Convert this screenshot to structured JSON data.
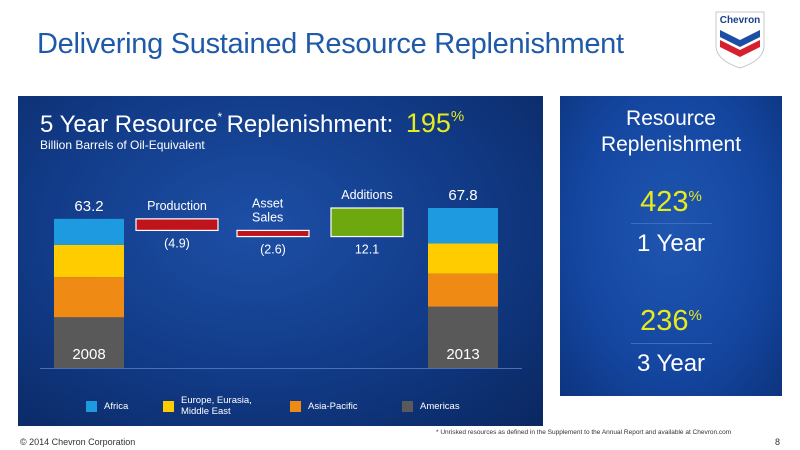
{
  "slide": {
    "title": "Delivering Sustained Resource Replenishment",
    "copyright": "© 2014 Chevron Corporation",
    "page_number": "8",
    "footnote": "* Unrisked resources as defined in the Supplement to the Annual Report and available at Chevron.com",
    "logo_text": "Chevron"
  },
  "chart_data": {
    "type": "waterfall",
    "title_prefix": "5 Year Resource",
    "title_asterisk": "*",
    "title_suffix": "Replenishment:",
    "title_value": "195",
    "title_value_unit": "%",
    "subtitle": "Billion Barrels of Oil-Equivalent",
    "stacked_bars": [
      {
        "category": "2008",
        "total": 63.2,
        "total_label": "63.2",
        "segments": [
          {
            "region": "Americas",
            "value": 21.5
          },
          {
            "region": "Asia-Pacific",
            "value": 17.0
          },
          {
            "region": "Europe, Eurasia, Middle East",
            "value": 13.7
          },
          {
            "region": "Africa",
            "value": 11.0
          }
        ]
      },
      {
        "category": "2013",
        "total": 67.8,
        "total_label": "67.8",
        "segments": [
          {
            "region": "Americas",
            "value": 26.0
          },
          {
            "region": "Asia-Pacific",
            "value": 14.0
          },
          {
            "region": "Europe, Eurasia, Middle East",
            "value": 12.8
          },
          {
            "region": "Africa",
            "value": 15.0
          }
        ]
      }
    ],
    "changes": [
      {
        "label": "Production",
        "value": -4.9,
        "value_label": "(4.9)",
        "color": "#c0141c"
      },
      {
        "label": "Asset\nSales",
        "value": -2.6,
        "value_label": "(2.6)",
        "color": "#c0141c"
      },
      {
        "label": "Additions",
        "value": 12.1,
        "value_label": "12.1",
        "color": "#6ea80f"
      }
    ],
    "legend": [
      {
        "label": "Africa",
        "color": "#1e9be0"
      },
      {
        "label": "Europe, Eurasia,\nMiddle East",
        "color": "#ffcc00"
      },
      {
        "label": "Asia-Pacific",
        "color": "#ef8a14"
      },
      {
        "label": "Americas",
        "color": "#595959"
      }
    ],
    "legend_placement": "bottom"
  },
  "resource_replenishment": {
    "title": "Resource\nReplenishment",
    "metrics": [
      {
        "value": "423",
        "unit": "%",
        "label": "1 Year"
      },
      {
        "value": "236",
        "unit": "%",
        "label": "3 Year"
      }
    ]
  }
}
